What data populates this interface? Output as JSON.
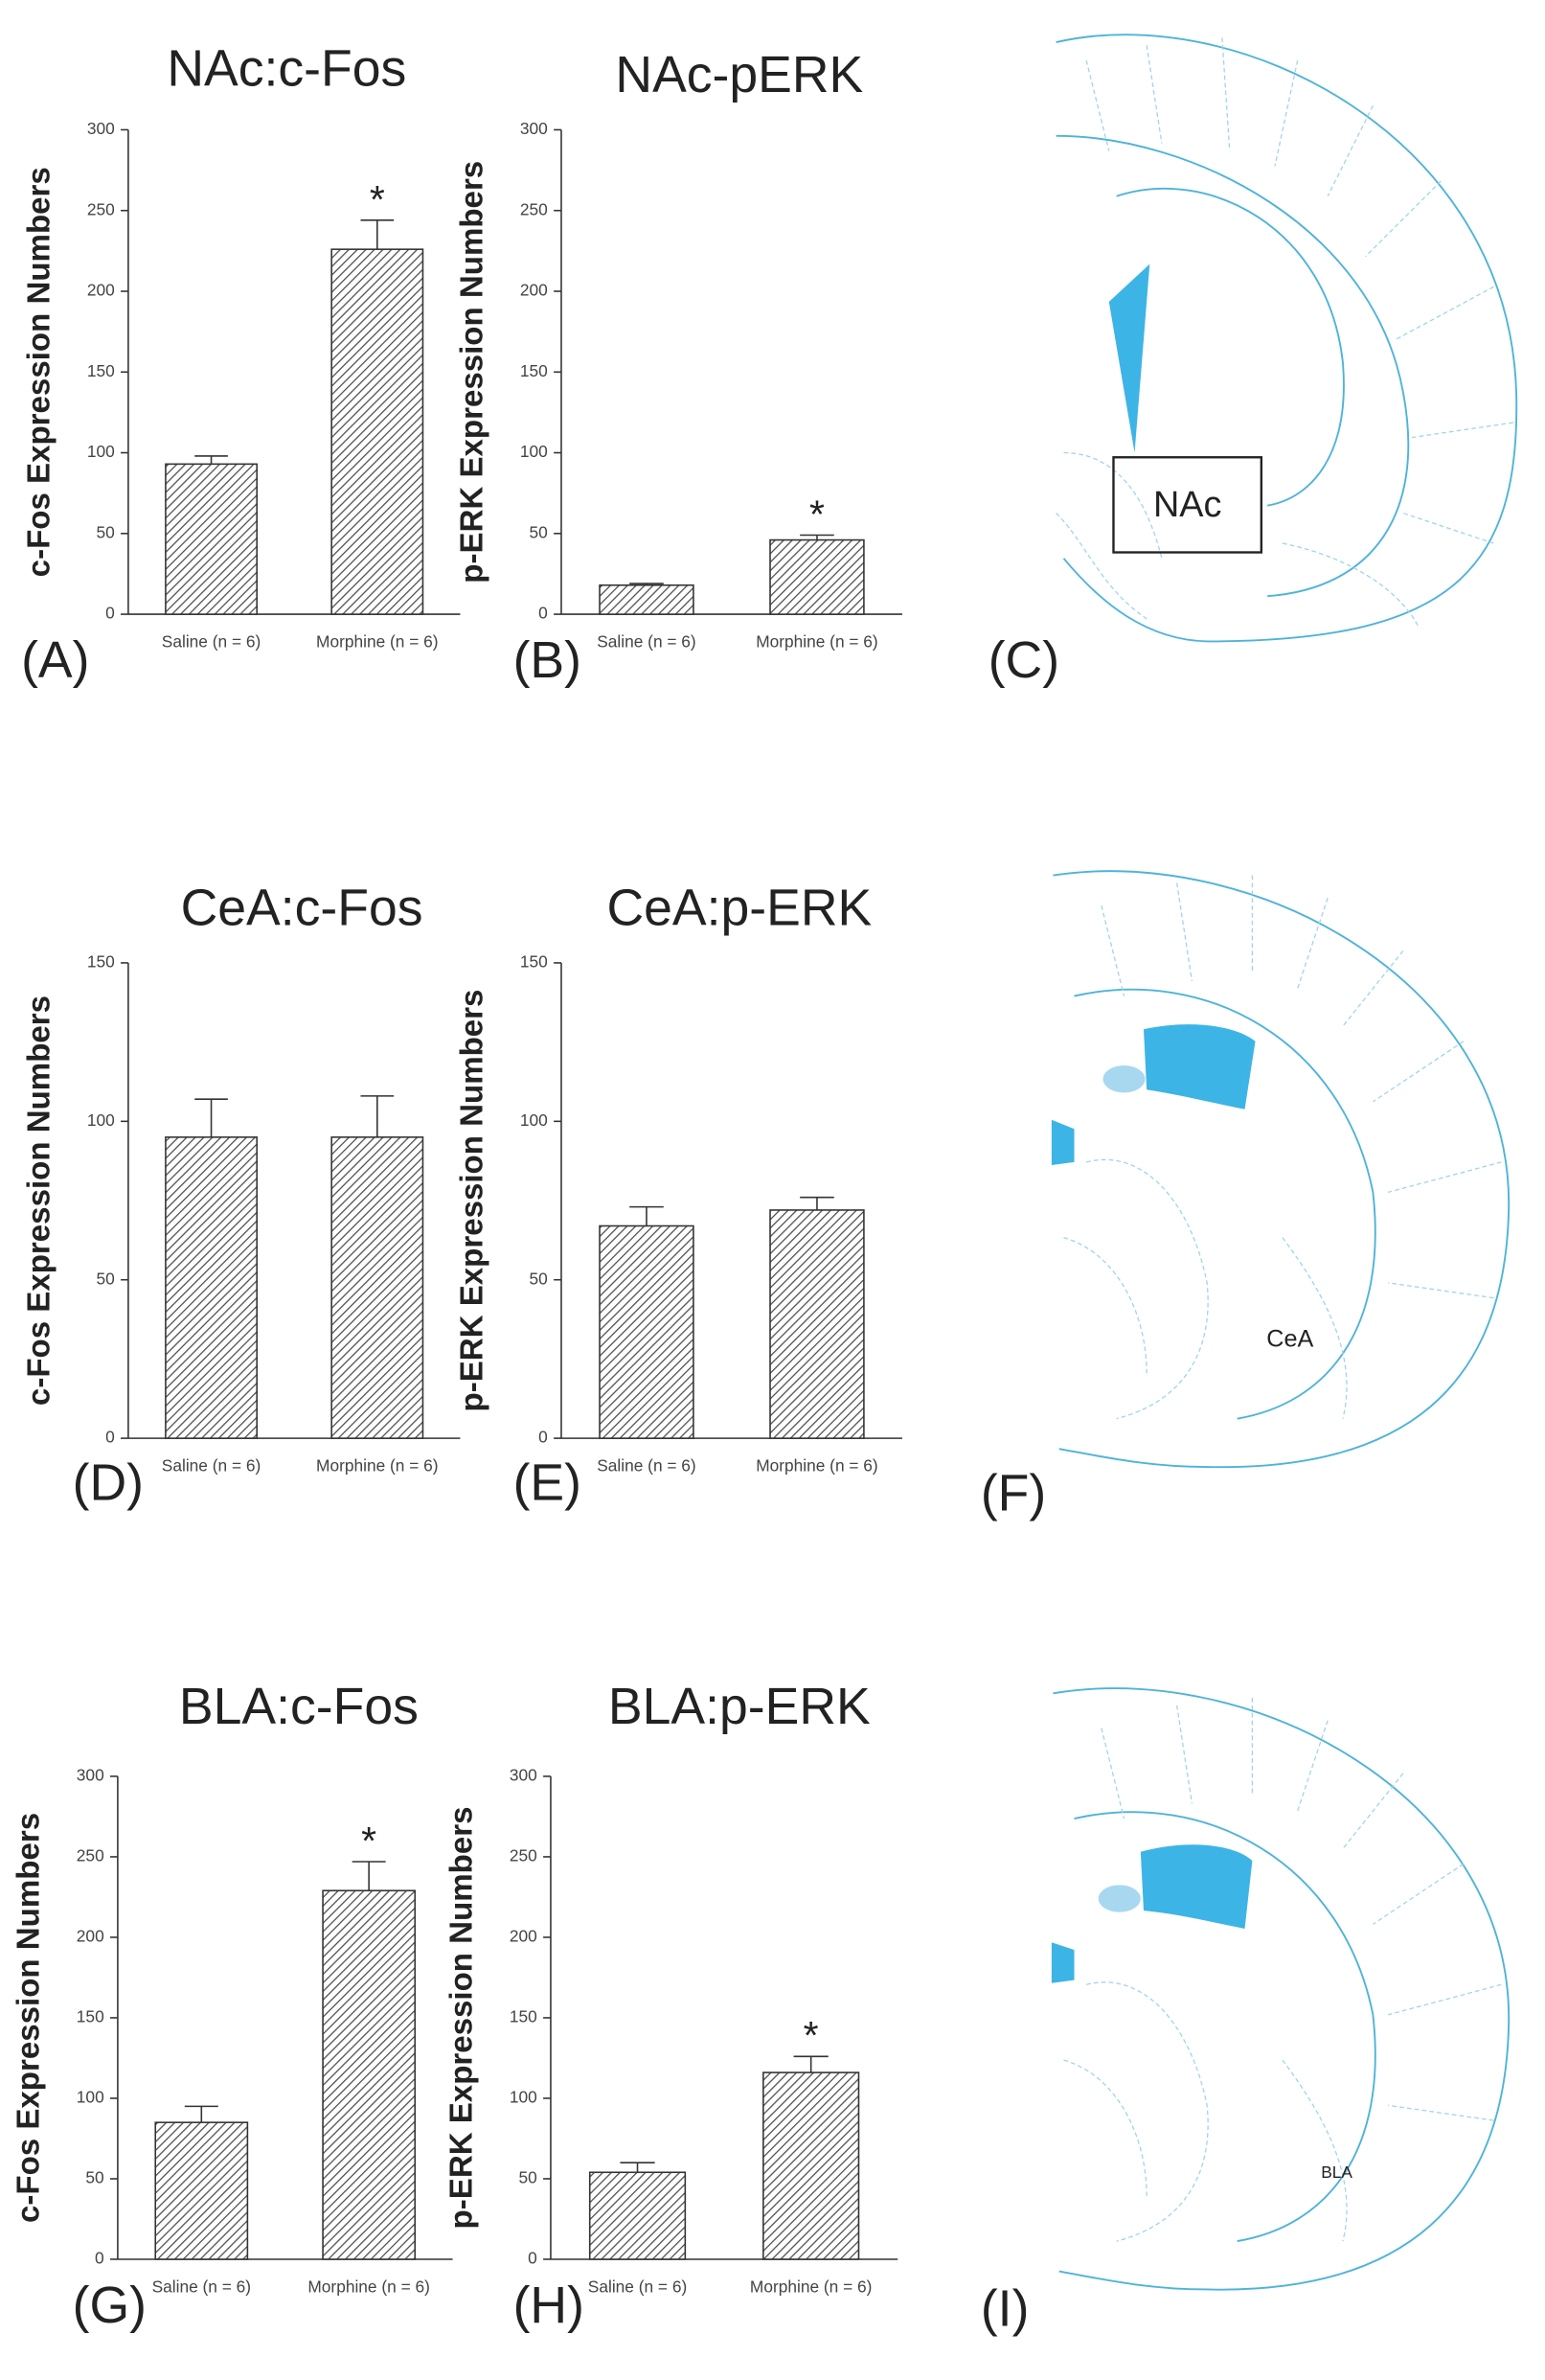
{
  "chart_data": [
    {
      "type": "bar",
      "panel_label": "(A)",
      "title": "NAc:c-Fos",
      "ylabel": "c-Fos Expression Numbers",
      "categories": [
        "Saline (n = 6)",
        "Morphine (n = 6)"
      ],
      "values": [
        93,
        226
      ],
      "errors": [
        5,
        18
      ],
      "value_annotations": [
        null,
        "*"
      ],
      "color": "#4d4d4d",
      "ylim": [
        0,
        300
      ],
      "yticks": [
        0,
        50,
        100,
        150,
        200,
        250,
        300
      ]
    },
    {
      "type": "bar",
      "panel_label": "(B)",
      "title": "NAc-pERK",
      "ylabel": "p-ERK Expression Numbers",
      "categories": [
        "Saline (n = 6)",
        "Morphine (n = 6)"
      ],
      "values": [
        18,
        46
      ],
      "errors": [
        1,
        3
      ],
      "value_annotations": [
        null,
        "*"
      ],
      "color": "#4d4d4d",
      "ylim": [
        0,
        300
      ],
      "yticks": [
        0,
        50,
        100,
        150,
        200,
        250,
        300
      ]
    },
    {
      "type": "bar",
      "panel_label": "(D)",
      "title": "CeA:c-Fos",
      "ylabel": "c-Fos Expression Numbers",
      "categories": [
        "Saline (n = 6)",
        "Morphine (n = 6)"
      ],
      "values": [
        95,
        95
      ],
      "errors": [
        12,
        13
      ],
      "color": "#4d4d4d",
      "ylim": [
        0,
        150
      ],
      "yticks": [
        0,
        50,
        100,
        150
      ]
    },
    {
      "type": "bar",
      "panel_label": "(E)",
      "title": "CeA:p-ERK",
      "ylabel": "p-ERK Expression Numbers",
      "categories": [
        "Saline (n = 6)",
        "Morphine (n = 6)"
      ],
      "values": [
        67,
        72
      ],
      "errors": [
        6,
        4
      ],
      "color": "#4d4d4d",
      "ylim": [
        0,
        150
      ],
      "yticks": [
        0,
        50,
        100,
        150
      ]
    },
    {
      "type": "bar",
      "panel_label": "(G)",
      "title": "BLA:c-Fos",
      "ylabel": "c-Fos Expression Numbers",
      "categories": [
        "Saline (n = 6)",
        "Morphine (n = 6)"
      ],
      "values": [
        85,
        229
      ],
      "errors": [
        10,
        18
      ],
      "value_annotations": [
        null,
        "*"
      ],
      "color": "#4d4d4d",
      "ylim": [
        0,
        300
      ],
      "yticks": [
        0,
        50,
        100,
        150,
        200,
        250,
        300
      ]
    },
    {
      "type": "bar",
      "panel_label": "(H)",
      "title": "BLA:p-ERK",
      "ylabel": "p-ERK Expression Numbers",
      "categories": [
        "Saline (n = 6)",
        "Morphine (n = 6)"
      ],
      "values": [
        54,
        116
      ],
      "errors": [
        6,
        10
      ],
      "value_annotations": [
        null,
        "*"
      ],
      "color": "#4d4d4d",
      "ylim": [
        0,
        300
      ],
      "yticks": [
        0,
        50,
        100,
        150,
        200,
        250,
        300
      ]
    }
  ],
  "diagrams": [
    {
      "panel_label": "(C)",
      "label": "NAc"
    },
    {
      "panel_label": "(F)",
      "label": "CeA"
    },
    {
      "panel_label": "(I)",
      "label": "BLA"
    }
  ]
}
